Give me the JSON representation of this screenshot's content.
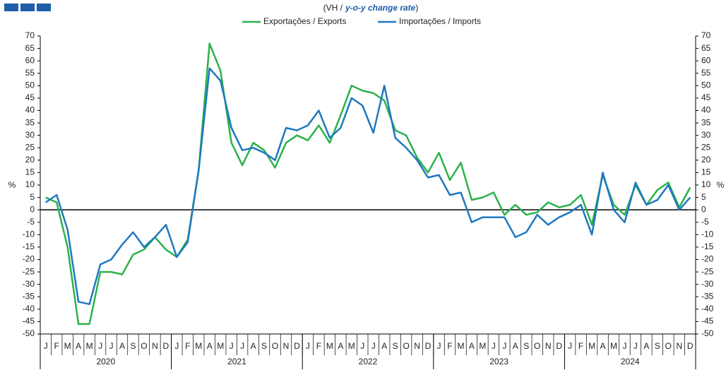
{
  "chart_data": {
    "type": "line",
    "title": [
      "(VH /",
      "y-o-y change rate",
      ")"
    ],
    "y_label": "%",
    "categories": [
      "J",
      "F",
      "M",
      "A",
      "M",
      "J",
      "J",
      "A",
      "S",
      "O",
      "N",
      "D",
      "J",
      "F",
      "M",
      "A",
      "M",
      "J",
      "J",
      "A",
      "S",
      "O",
      "N",
      "D",
      "J",
      "F",
      "M",
      "A",
      "M",
      "J",
      "J",
      "A",
      "S",
      "O",
      "N",
      "D",
      "J",
      "F",
      "M",
      "A",
      "M",
      "J",
      "J",
      "A",
      "S",
      "O",
      "N",
      "D",
      "J",
      "F",
      "M",
      "A",
      "M",
      "J",
      "J",
      "A",
      "S",
      "O",
      "N",
      "D"
    ],
    "years": [
      "2020",
      "2021",
      "2022",
      "2023",
      "2024"
    ],
    "series": [
      {
        "name": "Exportações / Exports",
        "color": "#2bb24c",
        "values": [
          5,
          3,
          -15,
          -46,
          -46,
          -25,
          -25,
          -26,
          -18,
          -16,
          -11,
          -16,
          -19,
          -12,
          16,
          67,
          56,
          27,
          18,
          27,
          24,
          17,
          27,
          30,
          28,
          34,
          27,
          38,
          50,
          48,
          47,
          44,
          32,
          30,
          21,
          15,
          23,
          12,
          19,
          4,
          5,
          7,
          -2,
          2,
          -2,
          -1,
          3,
          1,
          2,
          6,
          -6,
          14,
          2,
          -2,
          10,
          2,
          8,
          11,
          1,
          9
        ]
      },
      {
        "name": "Importações / Imports",
        "color": "#1f78c1",
        "values": [
          3,
          6,
          -8,
          -37,
          -38,
          -22,
          -20,
          -14,
          -9,
          -15,
          -11,
          -6,
          -19,
          -13,
          16,
          57,
          52,
          33,
          24,
          25,
          23,
          20,
          33,
          32,
          34,
          40,
          29,
          33,
          45,
          42,
          31,
          50,
          29,
          25,
          20,
          13,
          14,
          6,
          7,
          -5,
          -3,
          -3,
          -3,
          -11,
          -9,
          -2,
          -6,
          -3,
          -1,
          2,
          -10,
          15,
          0,
          -5,
          11,
          2,
          4,
          10,
          0,
          5
        ]
      }
    ],
    "ylim": [
      -50,
      70
    ],
    "yticks": [
      -50,
      -45,
      -40,
      -35,
      -30,
      -25,
      -20,
      -15,
      -10,
      -5,
      0,
      5,
      10,
      15,
      20,
      25,
      30,
      35,
      40,
      45,
      50,
      55,
      60,
      65,
      70
    ]
  }
}
